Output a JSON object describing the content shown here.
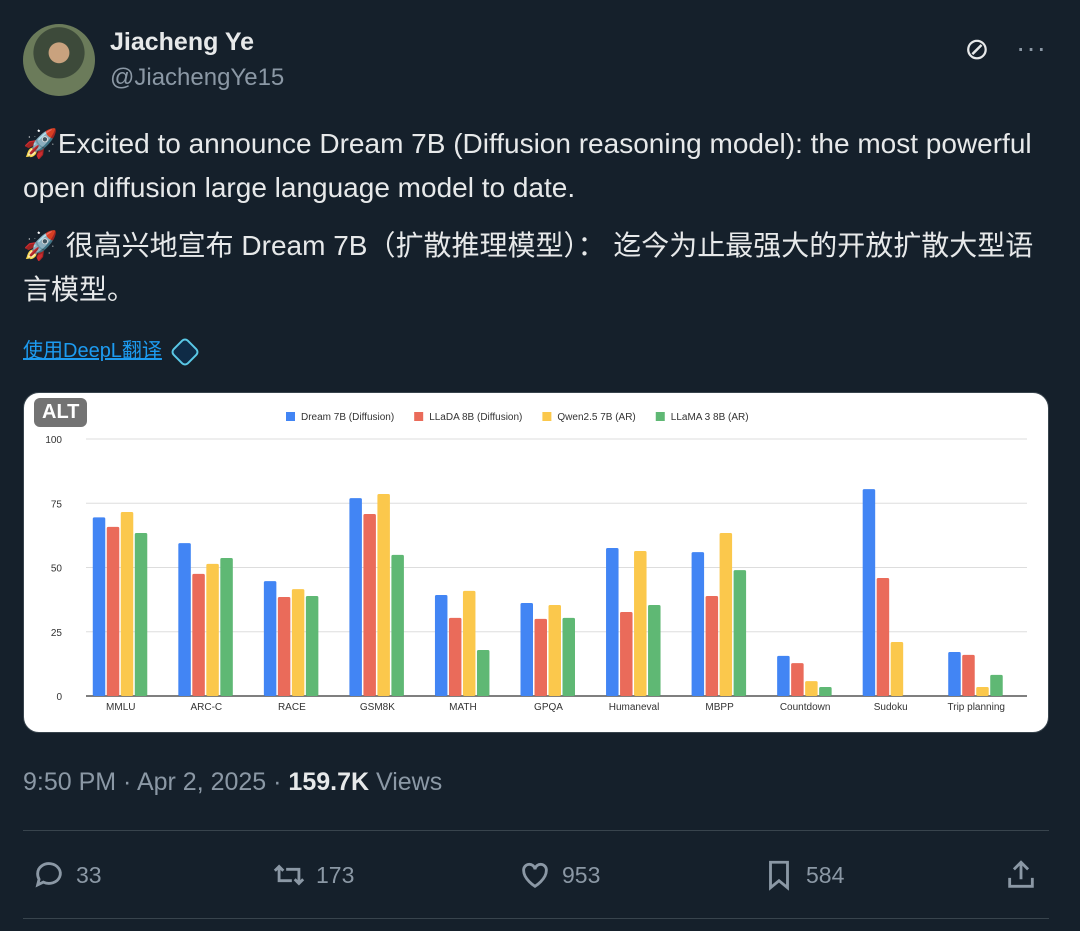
{
  "author": {
    "name": "Jiacheng Ye",
    "handle": "@JiachengYe15"
  },
  "icons": {
    "grok": "grok-icon",
    "more": "more-icon",
    "rocket": "rocket-icon",
    "deepl": "deepl-icon"
  },
  "tweet": {
    "line_en": "🚀Excited to announce Dream 7B (Diffusion reasoning model): the most powerful open diffusion large language model to date.",
    "line_zh": "🚀 很高兴地宣布 Dream 7B（扩散推理模型）： 迄今为止最强大的开放扩散大型语言模型。",
    "translate": "使用DeepL翻译",
    "alt_badge": "ALT"
  },
  "meta": {
    "time": "9:50 PM · Apr 2, 2025 · ",
    "views_count": "159.7K",
    "views_label": " Views"
  },
  "actions": {
    "replies": "33",
    "reposts": "173",
    "likes": "953",
    "bookmarks": "584"
  },
  "chart_data": {
    "type": "bar",
    "categories": [
      "MMLU",
      "ARC-C",
      "RACE",
      "GSM8K",
      "MATH",
      "GPQA",
      "Humaneval",
      "MBPP",
      "Countdown",
      "Sudoku",
      "Trip planning"
    ],
    "series": [
      {
        "name": "Dream 7B (Diffusion)",
        "color": "#4285f4",
        "values": [
          69.5,
          59.5,
          44.7,
          77,
          39.3,
          36.2,
          57.6,
          56,
          15.6,
          80.5,
          17.1
        ]
      },
      {
        "name": "LLaDA 8B  (Diffusion)",
        "color": "#ea6b5a",
        "values": [
          65.8,
          47.5,
          38.5,
          70.8,
          30.4,
          30,
          32.7,
          38.9,
          12.8,
          45.9,
          16
        ]
      },
      {
        "name": "Qwen2.5 7B  (AR)",
        "color": "#fbc84c",
        "values": [
          71.6,
          51.4,
          41.6,
          78.6,
          40.9,
          35.4,
          56.4,
          63.4,
          5.8,
          21,
          3.5
        ]
      },
      {
        "name": "LLaMA 3 8B  (AR)",
        "color": "#5fb874",
        "values": [
          63.4,
          53.7,
          38.9,
          54.9,
          17.9,
          30.4,
          35.4,
          49,
          3.5,
          0,
          8.2
        ]
      }
    ],
    "yticks": [
      "0",
      "25",
      "50",
      "75",
      "100"
    ],
    "ylim": [
      0,
      100
    ],
    "grid": true,
    "legend": "top"
  }
}
